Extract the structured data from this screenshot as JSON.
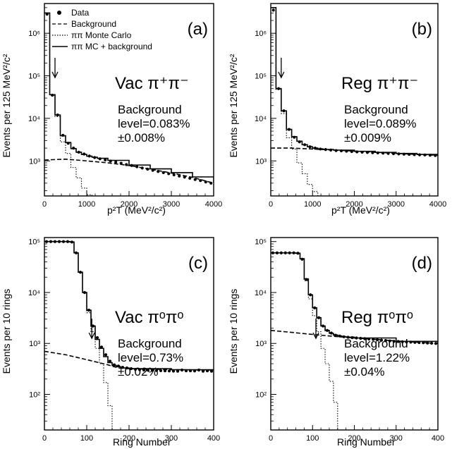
{
  "legend": {
    "items": [
      {
        "label": "Data",
        "style": "dot"
      },
      {
        "label": "Background",
        "style": "dashed"
      },
      {
        "label": "ππ Monte Carlo",
        "style": "dotted"
      },
      {
        "label": "ππ MC + background",
        "style": "solid"
      }
    ]
  },
  "chart_data": [
    {
      "type": "line",
      "panel": "(a)",
      "process": "Vac π⁺π⁻",
      "bg_title": "Background",
      "bg_level": "level=0.083%",
      "bg_err": "±0.008%",
      "xlabel": "p²T (MeV²/c²)",
      "ylabel": "Events per 125 MeV²/c²",
      "log_y": true,
      "xlim": [
        0,
        4000
      ],
      "ylim": [
        150,
        5000000
      ],
      "xticks": [
        "0",
        "1000",
        "2000",
        "3000",
        "4000"
      ],
      "yticks": [
        "10³",
        "10⁴",
        "10⁵",
        "10⁶"
      ],
      "arrow_x": 250,
      "series": [
        {
          "name": "Data",
          "x": [
            62,
            187,
            312,
            437,
            562,
            687,
            812,
            937,
            1062,
            1187,
            1312,
            1437,
            1562,
            1687,
            1812,
            1937,
            2062,
            2187,
            2312,
            2437,
            2562,
            2687,
            2812,
            2937,
            3062,
            3187,
            3312,
            3437,
            3562,
            3687,
            3812,
            3937
          ],
          "y": [
            2800000,
            35000,
            12000,
            4000,
            2600,
            2000,
            1600,
            1450,
            1300,
            1200,
            1120,
            1060,
            990,
            940,
            880,
            820,
            780,
            730,
            680,
            640,
            600,
            565,
            530,
            500,
            470,
            440,
            415,
            390,
            365,
            345,
            320,
            300
          ]
        },
        {
          "name": "Background",
          "x": [
            0,
            500,
            1000,
            1500,
            2000,
            2500,
            3000,
            3500,
            4000
          ],
          "y": [
            1050,
            1100,
            1000,
            900,
            780,
            640,
            520,
            410,
            300
          ]
        },
        {
          "name": "ππ Monte Carlo",
          "x": [
            0,
            125,
            250,
            375,
            500,
            625,
            750,
            875,
            1000,
            1125
          ],
          "y": [
            3000000,
            35000,
            11000,
            2800,
            1500,
            700,
            400,
            230,
            160,
            150
          ]
        },
        {
          "name": "ππ MC + background",
          "x": [
            0,
            125,
            250,
            375,
            500,
            625,
            750,
            875,
            1000,
            1125,
            1250,
            1500,
            2000,
            2500,
            3000,
            3500,
            4000
          ],
          "y": [
            3000000,
            36000,
            12000,
            3900,
            2700,
            1950,
            1600,
            1420,
            1290,
            1220,
            1150,
            1030,
            800,
            650,
            530,
            420,
            310
          ]
        }
      ]
    },
    {
      "type": "line",
      "panel": "(b)",
      "process": "Reg π⁺π⁻",
      "bg_title": "Background",
      "bg_level": "level=0.089%",
      "bg_err": "±0.009%",
      "xlabel": "p²T (MeV²/c²)",
      "ylabel": "Events per 125 MeV²/c²",
      "log_y": true,
      "xlim": [
        0,
        4000
      ],
      "ylim": [
        150,
        5000000
      ],
      "xticks": [
        "0",
        "1000",
        "2000",
        "3000",
        "4000"
      ],
      "yticks": [
        "10³",
        "10⁴",
        "10⁵",
        "10⁶"
      ],
      "arrow_x": 250,
      "series": [
        {
          "name": "Data",
          "x": [
            62,
            187,
            312,
            437,
            562,
            687,
            812,
            937,
            1062,
            1187,
            1312,
            1437,
            1562,
            1687,
            1812,
            1937,
            2062,
            2187,
            2312,
            2437,
            2562,
            2687,
            2812,
            2937,
            3062,
            3187,
            3312,
            3437,
            3562,
            3687,
            3812,
            3937
          ],
          "y": [
            3500000,
            50000,
            15000,
            5500,
            3600,
            2800,
            2400,
            2150,
            2000,
            1900,
            1850,
            1800,
            1750,
            1720,
            1690,
            1660,
            1630,
            1600,
            1580,
            1560,
            1540,
            1520,
            1500,
            1480,
            1460,
            1440,
            1420,
            1400,
            1390,
            1380,
            1360,
            1340
          ]
        },
        {
          "name": "Background",
          "x": [
            0,
            500,
            1000,
            1500,
            2000,
            2500,
            3000,
            3500,
            4000
          ],
          "y": [
            2000,
            2000,
            1900,
            1800,
            1700,
            1600,
            1500,
            1420,
            1350
          ]
        },
        {
          "name": "ππ Monte Carlo",
          "x": [
            0,
            125,
            250,
            375,
            500,
            625,
            750,
            875,
            1000,
            1125
          ],
          "y": [
            4000000,
            48000,
            13000,
            3500,
            1900,
            900,
            500,
            280,
            190,
            150
          ]
        },
        {
          "name": "ππ MC + background",
          "x": [
            0,
            125,
            250,
            375,
            500,
            625,
            750,
            875,
            1000,
            1125,
            1250,
            1500,
            2000,
            2500,
            3000,
            3500,
            4000
          ],
          "y": [
            4000000,
            50000,
            15000,
            5500,
            3700,
            2900,
            2400,
            2150,
            2000,
            1920,
            1860,
            1790,
            1680,
            1590,
            1500,
            1420,
            1350
          ]
        }
      ]
    },
    {
      "type": "line",
      "panel": "(c)",
      "process": "Vac πᵒπᵒ",
      "bg_title": "Background",
      "bg_level": "level=0.73%",
      "bg_err": "±0.02%",
      "xlabel": "Ring Number",
      "ylabel": "Events per 10 rings",
      "log_y": true,
      "xlim": [
        0,
        400
      ],
      "ylim": [
        20,
        120000
      ],
      "xticks": [
        "0",
        "100",
        "200",
        "300",
        "400"
      ],
      "yticks": [
        "10²",
        "10³",
        "10⁴",
        "10⁵"
      ],
      "arrow_x": 112,
      "series": [
        {
          "name": "Data",
          "x": [
            5,
            15,
            25,
            35,
            45,
            55,
            65,
            75,
            85,
            95,
            105,
            115,
            125,
            135,
            145,
            155,
            165,
            175,
            185,
            195,
            205,
            215,
            225,
            235,
            245,
            255,
            265,
            275,
            285,
            295,
            305,
            315,
            325,
            335,
            345,
            355,
            365,
            375,
            385,
            395
          ],
          "y": [
            100000,
            100000,
            100000,
            100000,
            100000,
            100000,
            98000,
            60000,
            25000,
            10000,
            4500,
            2200,
            1300,
            850,
            600,
            450,
            380,
            360,
            340,
            330,
            320,
            310,
            305,
            300,
            298,
            296,
            294,
            292,
            290,
            288,
            286,
            285,
            300,
            290,
            290,
            288,
            300,
            285,
            290,
            285
          ]
        },
        {
          "name": "Background",
          "x": [
            0,
            50,
            100,
            150,
            175,
            200,
            300,
            400
          ],
          "y": [
            700,
            600,
            480,
            380,
            330,
            320,
            305,
            300
          ]
        },
        {
          "name": "ππ Monte Carlo",
          "x": [
            0,
            10,
            20,
            30,
            40,
            50,
            60,
            70,
            80,
            90,
            100,
            110,
            120,
            130,
            140,
            150,
            160
          ],
          "y": [
            100000,
            100000,
            100000,
            100000,
            100000,
            100000,
            98000,
            60000,
            25000,
            10000,
            4000,
            1700,
            800,
            400,
            170,
            60,
            20
          ]
        },
        {
          "name": "ππ MC + background",
          "x": [
            0,
            10,
            20,
            30,
            40,
            50,
            60,
            70,
            80,
            90,
            100,
            110,
            120,
            130,
            140,
            150,
            160,
            170,
            180,
            200,
            300,
            400
          ],
          "y": [
            100000,
            100000,
            100000,
            100000,
            100000,
            100000,
            98000,
            60000,
            25000,
            10000,
            4500,
            2200,
            1200,
            800,
            550,
            420,
            370,
            350,
            330,
            320,
            305,
            300
          ]
        }
      ]
    },
    {
      "type": "line",
      "panel": "(d)",
      "process": "Reg πᵒπᵒ",
      "bg_title": "Background",
      "bg_level": "level=1.22%",
      "bg_err": "±0.04%",
      "xlabel": "Ring Number",
      "ylabel": "Events per 10 rings",
      "log_y": true,
      "xlim": [
        0,
        400
      ],
      "ylim": [
        20,
        120000
      ],
      "xticks": [
        "0",
        "100",
        "200",
        "300",
        "400"
      ],
      "yticks": [
        "10²",
        "10³",
        "10⁴",
        "10⁵"
      ],
      "arrow_x": 108,
      "series": [
        {
          "name": "Data",
          "x": [
            5,
            15,
            25,
            35,
            45,
            55,
            65,
            75,
            85,
            95,
            105,
            115,
            125,
            135,
            145,
            155,
            165,
            175,
            185,
            195,
            205,
            215,
            225,
            235,
            245,
            255,
            265,
            275,
            285,
            295,
            305,
            315,
            325,
            335,
            345,
            355,
            365,
            375,
            385,
            395
          ],
          "y": [
            60000,
            60000,
            60000,
            60000,
            60000,
            60000,
            59000,
            45000,
            18000,
            9000,
            5000,
            3200,
            2200,
            1800,
            1600,
            1450,
            1400,
            1350,
            1320,
            1300,
            1280,
            1260,
            1240,
            1220,
            1200,
            1180,
            1160,
            1140,
            1120,
            1100,
            1090,
            1080,
            1070,
            1060,
            1050,
            1040,
            1030,
            1020,
            1010,
            1000
          ]
        },
        {
          "name": "Background",
          "x": [
            0,
            50,
            100,
            150,
            200,
            250,
            300,
            350,
            400
          ],
          "y": [
            1800,
            1650,
            1500,
            1380,
            1280,
            1200,
            1120,
            1060,
            1000
          ]
        },
        {
          "name": "ππ Monte Carlo",
          "x": [
            0,
            10,
            20,
            30,
            40,
            50,
            60,
            70,
            80,
            90,
            100,
            110,
            120,
            130,
            140,
            150,
            160
          ],
          "y": [
            60000,
            60000,
            60000,
            60000,
            60000,
            60000,
            59000,
            45000,
            17000,
            7500,
            3500,
            1700,
            800,
            400,
            180,
            70,
            20
          ]
        },
        {
          "name": "ππ MC + background",
          "x": [
            0,
            10,
            20,
            30,
            40,
            50,
            60,
            70,
            80,
            90,
            100,
            110,
            120,
            130,
            140,
            150,
            160,
            170,
            180,
            200,
            300,
            400
          ],
          "y": [
            60000,
            60000,
            60000,
            60000,
            60000,
            60000,
            59000,
            46000,
            18500,
            9000,
            5000,
            3200,
            2200,
            1800,
            1580,
            1460,
            1400,
            1360,
            1330,
            1280,
            1100,
            1000
          ]
        }
      ]
    }
  ]
}
